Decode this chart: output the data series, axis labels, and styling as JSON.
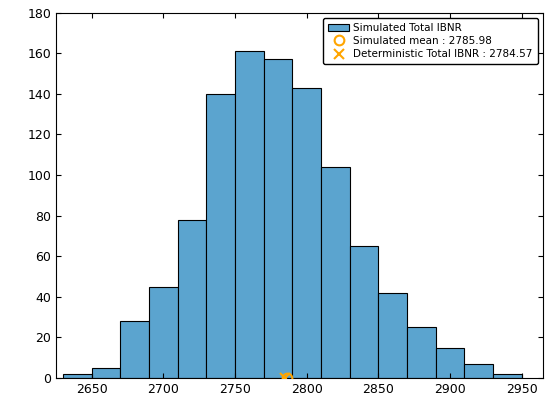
{
  "simulated_mean": 2785.98,
  "deterministic_ibnr": 2784.57,
  "bar_color": "#5BA4CF",
  "bar_edgecolor": "#000000",
  "xlim": [
    2625,
    2965
  ],
  "ylim": [
    0,
    180
  ],
  "xticks": [
    2650,
    2700,
    2750,
    2800,
    2850,
    2900,
    2950
  ],
  "yticks": [
    0,
    20,
    40,
    60,
    80,
    100,
    120,
    140,
    160,
    180
  ],
  "bin_edges": [
    2630,
    2650,
    2670,
    2690,
    2710,
    2730,
    2750,
    2770,
    2790,
    2810,
    2830,
    2850,
    2870,
    2890,
    2910,
    2930,
    2950
  ],
  "bin_counts": [
    2,
    5,
    28,
    45,
    78,
    140,
    161,
    157,
    143,
    104,
    65,
    42,
    25,
    15,
    7,
    2
  ],
  "legend_labels": [
    "Simulated Total IBNR",
    "Simulated mean : 2785.98",
    "Deterministic Total IBNR : 2784.57"
  ],
  "mean_marker": "o",
  "mean_marker_color": "orange",
  "mean_marker_size": 7,
  "det_marker": "x",
  "det_marker_color": "orange",
  "det_marker_size": 7,
  "background_color": "#ffffff",
  "legend_fontsize": 7.5,
  "tick_labelsize": 9
}
